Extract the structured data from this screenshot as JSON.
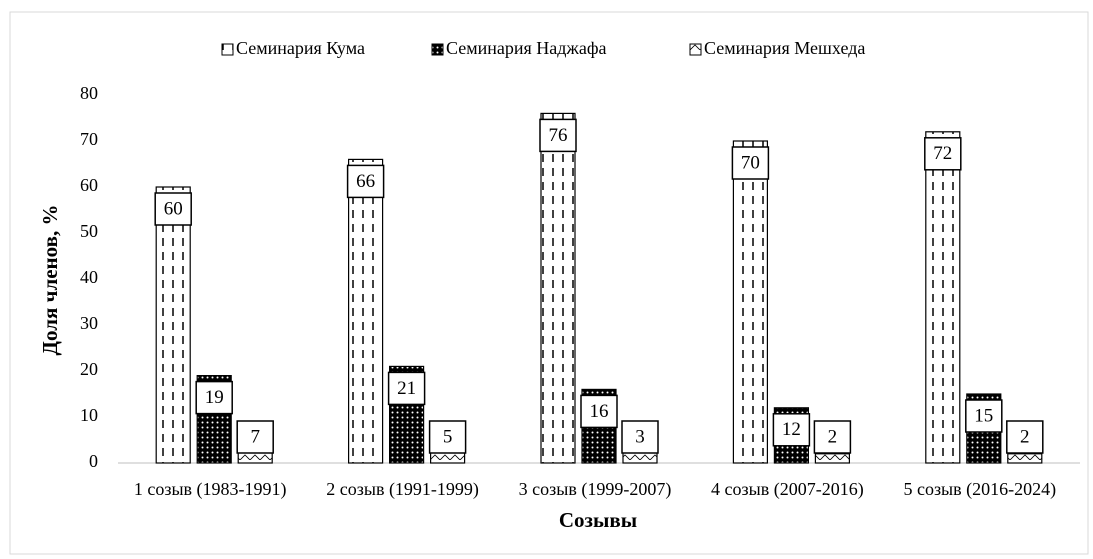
{
  "chart_data": {
    "type": "bar",
    "categories": [
      "1 созыв (1983-1991)",
      "2 созыв (1991-1999)",
      "3 созыв (1999-2007)",
      "4 созыв (2007-2016)",
      "5 созыв (2016-2024)"
    ],
    "series": [
      {
        "name": "Семинария Кума",
        "values": [
          60,
          66,
          76,
          70,
          72
        ]
      },
      {
        "name": "Семинария Наджафа",
        "values": [
          19,
          21,
          16,
          12,
          15
        ]
      },
      {
        "name": "Семинария Мешхеда",
        "values": [
          7,
          5,
          3,
          2,
          2
        ]
      }
    ],
    "x_label": "Созывы",
    "y_label": "Доля членов, %",
    "ylim": [
      0,
      80
    ],
    "yticks": [
      0,
      10,
      20,
      30,
      40,
      50,
      60,
      70,
      80
    ]
  }
}
